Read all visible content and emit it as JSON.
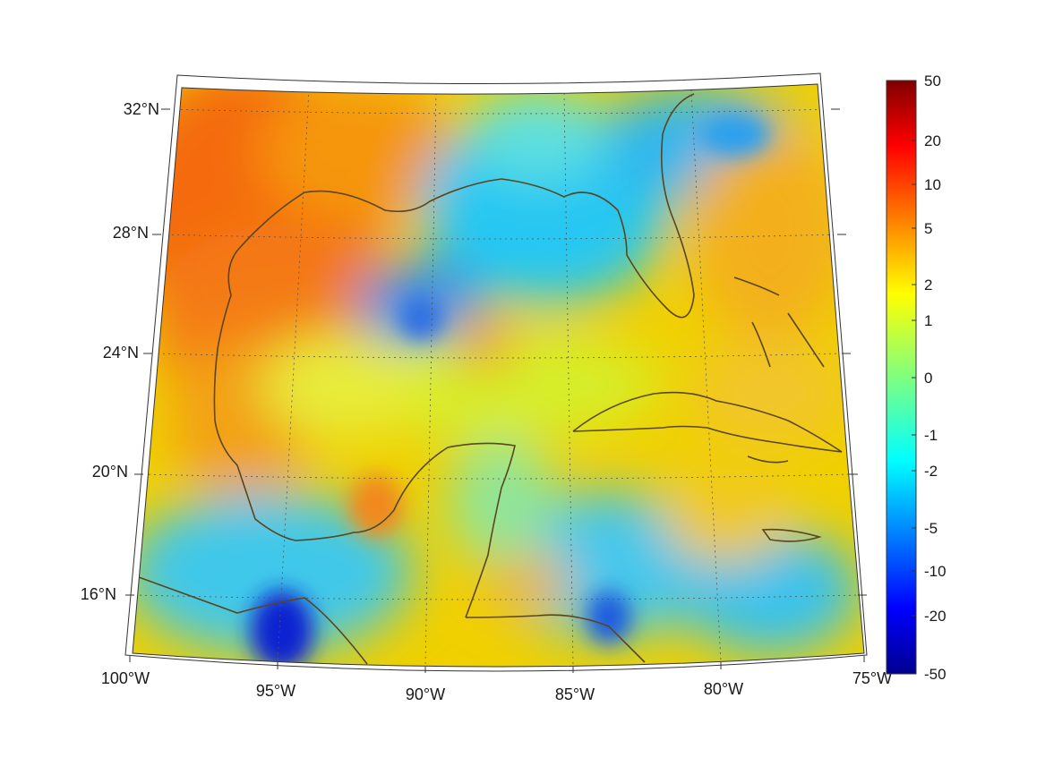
{
  "map": {
    "region": "Gulf of Mexico and Caribbean",
    "projection": "conic",
    "lon_range": [
      -100,
      -75
    ],
    "lat_range": [
      14,
      33
    ],
    "graticule": true,
    "lon_labels": [
      "100°W",
      "95°W",
      "90°W",
      "85°W",
      "80°W",
      "75°W"
    ],
    "lat_labels": [
      "32°N",
      "28°N",
      "24°N",
      "20°N",
      "16°N"
    ],
    "coastline_color": "#5a4520"
  },
  "colorbar": {
    "colormap": "jet",
    "placement": "right",
    "scale": "symmetric-log",
    "tick_labels": [
      "50",
      "20",
      "10",
      "5",
      "2",
      "1",
      "0",
      "-1",
      "-2",
      "-5",
      "-10",
      "-20",
      "-50"
    ],
    "range": [
      -50,
      50
    ]
  },
  "colors": {
    "jet_low": "#00008f",
    "jet_mid": "#7fff7f",
    "jet_high": "#800000"
  }
}
